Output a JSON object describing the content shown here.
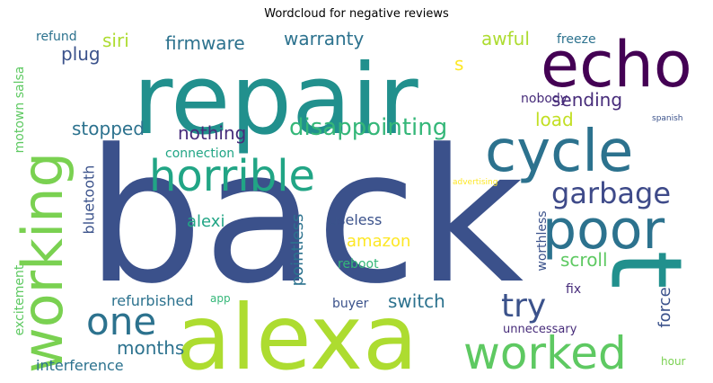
{
  "title": "Wordcloud for negative reviews",
  "colors": {
    "background": "#ffffff",
    "dark_navy": "#3b518b",
    "purple": "#440154",
    "violet": "#472c7a",
    "teal": "#21908d",
    "blue_teal": "#2c728e",
    "green": "#5ec962",
    "lime": "#addc30",
    "yellow": "#fde725",
    "mint": "#35b779"
  },
  "words": [
    {
      "text": "back",
      "color": "#3b518b"
    },
    {
      "text": "repair",
      "color": "#21908d"
    },
    {
      "text": "alexa",
      "color": "#addc30"
    },
    {
      "text": "t",
      "color": "#21908d"
    },
    {
      "text": "working",
      "color": "#7ad151"
    },
    {
      "text": "echo",
      "color": "#440154"
    },
    {
      "text": "cycle",
      "color": "#2c728e"
    },
    {
      "text": "poor",
      "color": "#2c728e"
    },
    {
      "text": "horrible",
      "color": "#21a585"
    },
    {
      "text": "worked",
      "color": "#5ec962"
    },
    {
      "text": "one",
      "color": "#2c728e"
    },
    {
      "text": "garbage",
      "color": "#3e4a89"
    },
    {
      "text": "try",
      "color": "#3b528b"
    },
    {
      "text": "disappointing",
      "color": "#35b779"
    },
    {
      "text": "nothing",
      "color": "#472d7b"
    },
    {
      "text": "stopped",
      "color": "#2c728e"
    },
    {
      "text": "firmware",
      "color": "#2c728e"
    },
    {
      "text": "warranty",
      "color": "#2c728e"
    },
    {
      "text": "awful",
      "color": "#addc30"
    },
    {
      "text": "sending",
      "color": "#472c7a"
    },
    {
      "text": "siri",
      "color": "#addc30"
    },
    {
      "text": "plug",
      "color": "#3b528b"
    },
    {
      "text": "refund",
      "color": "#2c728e"
    },
    {
      "text": "freeze",
      "color": "#2c728e"
    },
    {
      "text": "s",
      "color": "#fde725"
    },
    {
      "text": "load",
      "color": "#c2df23"
    },
    {
      "text": "nobody",
      "color": "#472c7a"
    },
    {
      "text": "motown salsa",
      "color": "#5ec962"
    },
    {
      "text": "bluetooth",
      "color": "#3b528b"
    },
    {
      "text": "connection",
      "color": "#21a585"
    },
    {
      "text": "alexi",
      "color": "#21a585"
    },
    {
      "text": "amazon",
      "color": "#fde725"
    },
    {
      "text": "useless",
      "color": "#3b528b"
    },
    {
      "text": "pointless",
      "color": "#2c728e"
    },
    {
      "text": "reboot",
      "color": "#35b779"
    },
    {
      "text": "scroll",
      "color": "#5ec962"
    },
    {
      "text": "force",
      "color": "#3b528b"
    },
    {
      "text": "switch",
      "color": "#2c728e"
    },
    {
      "text": "refurbished",
      "color": "#2c728e"
    },
    {
      "text": "app",
      "color": "#35b779"
    },
    {
      "text": "buyer",
      "color": "#3b528b"
    },
    {
      "text": "fix",
      "color": "#472c7a"
    },
    {
      "text": "months",
      "color": "#2c728e"
    },
    {
      "text": "interference",
      "color": "#2c728e"
    },
    {
      "text": "excitement",
      "color": "#5ec962"
    },
    {
      "text": "unnecessary",
      "color": "#472c7a"
    },
    {
      "text": "worthless",
      "color": "#3b528b"
    },
    {
      "text": "hour",
      "color": "#7ad151"
    },
    {
      "text": "spanish",
      "color": "#3b528b"
    },
    {
      "text": "advertising",
      "color": "#fde725"
    }
  ]
}
